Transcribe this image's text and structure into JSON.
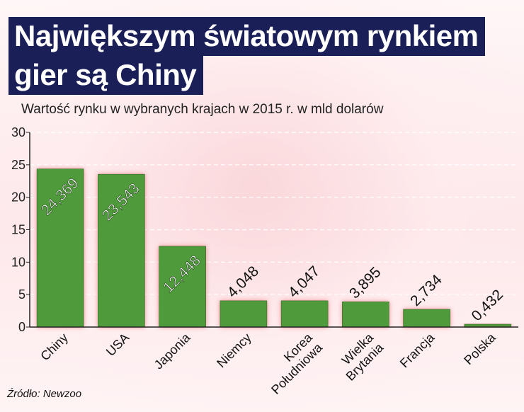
{
  "title_line1": "Największym światowym rynkiem",
  "title_line2": "gier są Chiny",
  "subtitle": "Wartość rynku w wybranych krajach w 2015 r. w mld dolarów",
  "source": "Źródło: Newzoo",
  "colors": {
    "title_bg": "#1b1f58",
    "bar_fill": "#4f9a3b",
    "bar_glow": "#e8303a",
    "grid": "#ffffff"
  },
  "chart_data": {
    "type": "bar",
    "categories": [
      "Chiny",
      "USA",
      "Japonia",
      "Niemcy",
      "Korea Południowa",
      "Wielka Brytania",
      "Francja",
      "Polska"
    ],
    "category_lines": [
      [
        "Chiny"
      ],
      [
        "USA"
      ],
      [
        "Japonia"
      ],
      [
        "Niemcy"
      ],
      [
        "Korea",
        "Południowa"
      ],
      [
        "Wielka",
        "Brytania"
      ],
      [
        "Francja"
      ],
      [
        "Polska"
      ]
    ],
    "values": [
      24.369,
      23.543,
      12.448,
      4.048,
      4.047,
      3.895,
      2.734,
      0.432
    ],
    "value_labels": [
      "24,369",
      "23,543",
      "12,448",
      "4,048",
      "4,047",
      "3,895",
      "2,734",
      "0,432"
    ],
    "ylim": [
      0,
      30
    ],
    "yticks": [
      0,
      5,
      10,
      15,
      20,
      25,
      30
    ],
    "grid": true
  }
}
